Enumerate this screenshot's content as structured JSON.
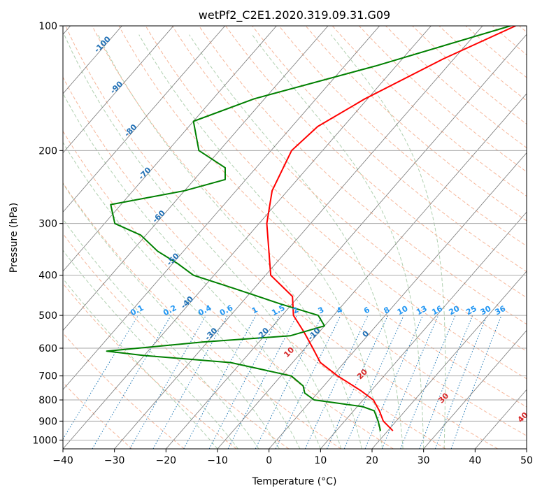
{
  "chart_data": {
    "type": "line",
    "title": "wetPf2_C2E1.2020.319.09.31.G09",
    "xlabel": "Temperature (°C)",
    "ylabel": "Pressure (hPa)",
    "xlim": [
      -40,
      50
    ],
    "ylim": [
      1050,
      100
    ],
    "y_scale": "log",
    "grid": true,
    "x_ticks": [
      -40,
      -30,
      -20,
      -10,
      0,
      10,
      20,
      30,
      40,
      50
    ],
    "y_ticks": [
      100,
      200,
      300,
      400,
      500,
      600,
      700,
      800,
      900,
      1000
    ],
    "series": [
      {
        "color": "#ff0000",
        "points": [
          [
            -23.6,
            100
          ],
          [
            -32.0,
            120
          ],
          [
            -40.5,
            150
          ],
          [
            -45.0,
            175
          ],
          [
            -46.0,
            200
          ],
          [
            -43.0,
            250
          ],
          [
            -38.5,
            300
          ],
          [
            -29.0,
            400
          ],
          [
            -21.2,
            450
          ],
          [
            -17.8,
            500
          ],
          [
            -12.8,
            550
          ],
          [
            -8.5,
            600
          ],
          [
            -4.6,
            650
          ],
          [
            1.0,
            700
          ],
          [
            8.0,
            760
          ],
          [
            12.0,
            800
          ],
          [
            15.0,
            850
          ],
          [
            17.5,
            900
          ],
          [
            21.0,
            950
          ]
        ]
      },
      {
        "color": "#008000",
        "points": [
          [
            -24.6,
            100
          ],
          [
            -44.0,
            125
          ],
          [
            -62.0,
            150
          ],
          [
            -70.0,
            170
          ],
          [
            -64.0,
            200
          ],
          [
            -56.0,
            220
          ],
          [
            -54.0,
            235
          ],
          [
            -60.0,
            250
          ],
          [
            -72.0,
            270
          ],
          [
            -68.0,
            300
          ],
          [
            -61.0,
            320
          ],
          [
            -55.0,
            350
          ],
          [
            -49.0,
            375
          ],
          [
            -44.0,
            400
          ],
          [
            -34.0,
            430
          ],
          [
            -22.0,
            470
          ],
          [
            -13.0,
            500
          ],
          [
            -10.0,
            530
          ],
          [
            -15.0,
            560
          ],
          [
            -31.0,
            580
          ],
          [
            -48.0,
            610
          ],
          [
            -40.0,
            625
          ],
          [
            -22.0,
            650
          ],
          [
            -8.0,
            700
          ],
          [
            -4.0,
            740
          ],
          [
            -2.5,
            770
          ],
          [
            0.5,
            800
          ],
          [
            11.0,
            830
          ],
          [
            14.0,
            850
          ],
          [
            16.5,
            900
          ],
          [
            18.6,
            950
          ]
        ]
      }
    ],
    "isotherm_labels": [
      "-100",
      "-90",
      "-80",
      "-70",
      "-60",
      "-50",
      "-40",
      "-30",
      "-20",
      "-10",
      "0"
    ],
    "dry_adiabat_labels": [
      "10",
      "20",
      "30",
      "40"
    ],
    "mixing_ratio_labels": [
      "0.1",
      "0.2",
      "0.4",
      "0.6",
      "1",
      "1.5",
      "2",
      "3",
      "4",
      "6",
      "8",
      "10",
      "13",
      "16",
      "20",
      "25",
      "30",
      "36"
    ],
    "colors": {
      "temperature": "#ff0000",
      "dewpoint": "#008000",
      "dry_adiabat": "#f4a582",
      "moist_adiabat": "#8fbc8f",
      "mixing_ratio": "#1f77b4",
      "isotherm": "#777777",
      "isobar": "#aaaaaa"
    }
  }
}
